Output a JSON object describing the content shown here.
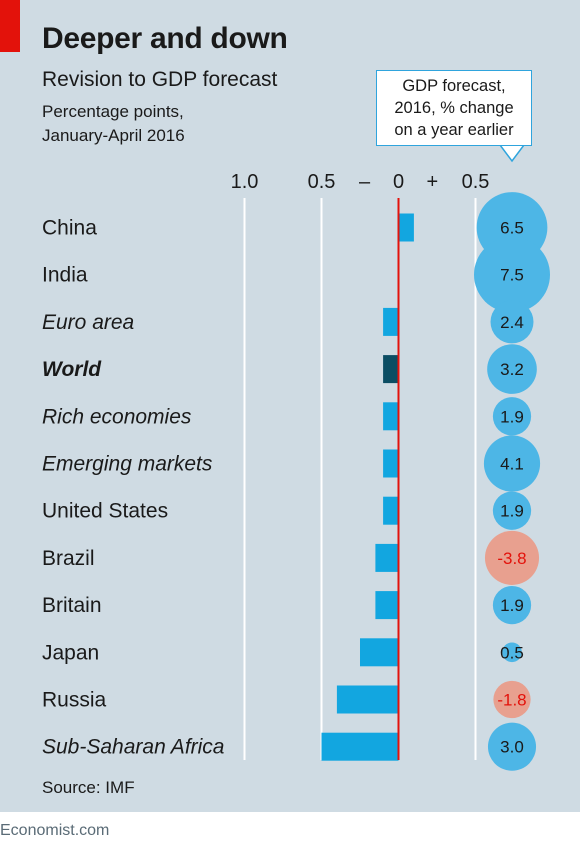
{
  "title": "Deeper and down",
  "subtitle": "Revision to GDP forecast",
  "note_line1": "Percentage points,",
  "note_line2": "January-April 2016",
  "callout": {
    "line1": "GDP forecast,",
    "line2": "2016, % change",
    "line3": "on a year earlier"
  },
  "source": "Source: IMF",
  "footer": "Economist.com",
  "colors": {
    "panel": "#cfdbe3",
    "bar": "#12a6e0",
    "highlight_bar": "#0b4d63",
    "positive_bubble": "#4db6e6",
    "negative_bubble": "#e8a08f",
    "negative_text": "#e3120b",
    "zero_line": "#e3120b",
    "accent": "#e3120b"
  },
  "chart_data": [
    {
      "type": "bar",
      "orientation": "horizontal",
      "title": "Revision to GDP forecast",
      "ylabel": "Percentage points, January-April 2016",
      "xlim": [
        -1.0,
        0.5
      ],
      "tick_labels": [
        "1.0",
        "0.5",
        "–",
        "0",
        "+",
        "0.5"
      ],
      "tick_values": [
        -1.0,
        -0.5,
        null,
        0,
        null,
        0.5
      ],
      "grid": true,
      "categories": [
        "China",
        "India",
        "Euro area",
        "World",
        "Rich economies",
        "Emerging markets",
        "United States",
        "Brazil",
        "Britain",
        "Japan",
        "Russia",
        "Sub-Saharan Africa"
      ],
      "category_style": [
        "normal",
        "normal",
        "italic",
        "bold-italic",
        "italic",
        "italic",
        "normal",
        "normal",
        "normal",
        "normal",
        "normal",
        "italic"
      ],
      "values": [
        0.1,
        0,
        -0.1,
        -0.1,
        -0.1,
        -0.1,
        -0.1,
        -0.15,
        -0.15,
        -0.25,
        -0.4,
        -0.5
      ],
      "highlight": "World"
    },
    {
      "type": "bubble",
      "title": "GDP forecast, 2016, % change on a year earlier",
      "categories": [
        "China",
        "India",
        "Euro area",
        "World",
        "Rich economies",
        "Emerging markets",
        "United States",
        "Brazil",
        "Britain",
        "Japan",
        "Russia",
        "Sub-Saharan Africa"
      ],
      "values": [
        6.5,
        7.5,
        2.4,
        3.2,
        1.9,
        4.1,
        1.9,
        -3.8,
        1.9,
        0.5,
        -1.8,
        3.0
      ],
      "labels": [
        "6.5",
        "7.5",
        "2.4",
        "3.2",
        "1.9",
        "4.1",
        "1.9",
        "-3.8",
        "1.9",
        "0.5",
        "-1.8",
        "3.0"
      ]
    }
  ]
}
